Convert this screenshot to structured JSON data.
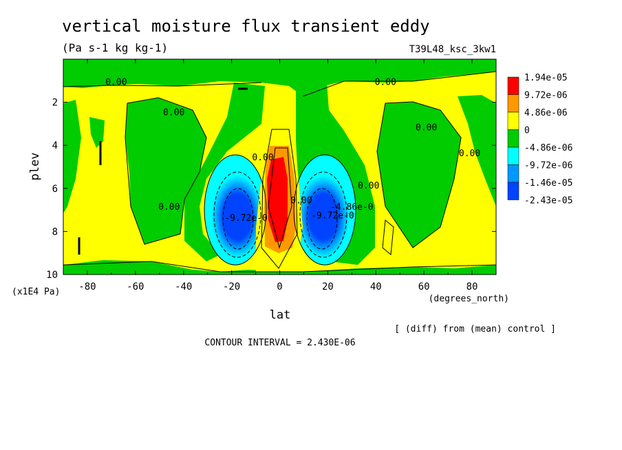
{
  "chart_data": {
    "type": "heatmap",
    "title": "vertical moisture flux transient eddy",
    "units": "(Pa s-1 kg kg-1)",
    "run_label": "T39L48_ksc_3kw1",
    "xlabel": "lat",
    "x_units": "(degrees_north)",
    "ylabel": "plev",
    "y_units": "(x1E4 Pa)",
    "xlim": [
      -90,
      90
    ],
    "ylim": [
      0,
      10
    ],
    "x_ticks": [
      "-80",
      "-60",
      "-40",
      "-20",
      "0",
      "20",
      "40",
      "60",
      "80"
    ],
    "y_ticks": [
      "2",
      "4",
      "6",
      "8",
      "10"
    ],
    "note": "[ (diff) from (mean) control ]",
    "contour_interval": "CONTOUR INTERVAL = 2.430E-06",
    "legend": [
      {
        "label": "1.94e-05",
        "color": "#ff0000"
      },
      {
        "label": "9.72e-06",
        "color": "#ff9900"
      },
      {
        "label": "4.86e-06",
        "color": "#ffff00"
      },
      {
        "label": "0",
        "color": "#00cc00"
      },
      {
        "label": "-4.86e-06",
        "color": "#00ffff"
      },
      {
        "label": "-9.72e-06",
        "color": "#0099ff"
      },
      {
        "label": "-1.46e-05",
        "color": "#0044ff"
      },
      {
        "label": "-2.43e-05",
        "color": "#0044ff"
      }
    ],
    "contour_labels": [
      {
        "text": "0.00",
        "lat": -68,
        "plev": 1.2
      },
      {
        "text": "0.00",
        "lat": -44,
        "plev": 2.6
      },
      {
        "text": "0.00",
        "lat": -46,
        "plev": 7.0
      },
      {
        "text": "0.00",
        "lat": 44,
        "plev": 1.2
      },
      {
        "text": "0.00",
        "lat": 61,
        "plev": 3.3
      },
      {
        "text": "0.00",
        "lat": 79,
        "plev": 4.5
      },
      {
        "text": "0.00",
        "lat": 37,
        "plev": 6.0
      },
      {
        "text": "-4.86e-0",
        "lat": 30,
        "plev": 7.0
      },
      {
        "text": "-9.72e-0",
        "lat": 22,
        "plev": 7.4
      },
      {
        "text": "-9.72e-0",
        "lat": -14,
        "plev": 7.5
      },
      {
        "text": "0.00",
        "lat": -7,
        "plev": 4.7
      },
      {
        "text": "0.00",
        "lat": 9,
        "plev": 6.7
      }
    ]
  }
}
